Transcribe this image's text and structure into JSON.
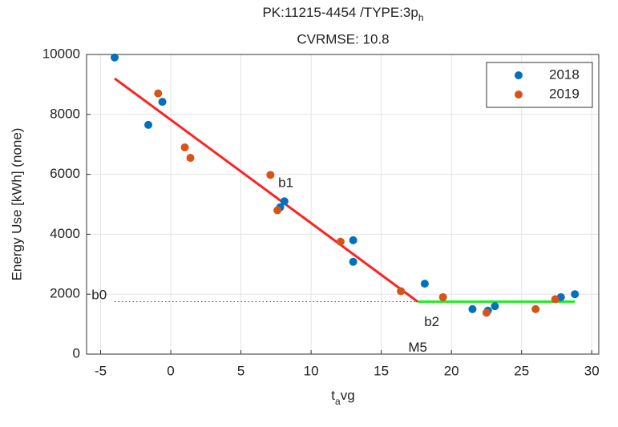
{
  "chart_data": {
    "type": "scatter",
    "title": "PK:11215-4454 /TYPE:3p",
    "title_subscript": "h",
    "subtitle": "CVRMSE: 10.8",
    "ylabel": "Energy Use [kWh] (none)",
    "xlabel": "t",
    "xlabel_subscript": "a",
    "xlabel_suffix": "vg",
    "xlim": [
      -6,
      30.5
    ],
    "ylim": [
      0,
      10000
    ],
    "xticks": [
      -5,
      0,
      5,
      10,
      15,
      20,
      25,
      30
    ],
    "yticks": [
      0,
      2000,
      4000,
      6000,
      8000,
      10000
    ],
    "grid": true,
    "legend": "upper right",
    "series": [
      {
        "name": "2018",
        "color": "#0072bd",
        "x": [
          -4,
          -1.6,
          -0.6,
          7.8,
          8.1,
          13,
          13,
          18.1,
          21.5,
          22.6,
          23.1,
          27.8,
          28.8
        ],
        "values": [
          9900,
          7650,
          8420,
          4900,
          5100,
          3800,
          3080,
          2350,
          1500,
          1450,
          1600,
          1900,
          2000
        ]
      },
      {
        "name": "2019",
        "color": "#d95319",
        "x": [
          -0.9,
          1,
          1.4,
          7.1,
          7.6,
          12.1,
          16.4,
          19.4,
          22.5,
          26,
          27.4
        ],
        "values": [
          8700,
          6900,
          6550,
          5980,
          4800,
          3750,
          2100,
          1900,
          1380,
          1500,
          1830
        ]
      }
    ],
    "lines": [
      {
        "color": "#ff2020",
        "style": "solid",
        "x": [
          -4,
          17.6
        ],
        "values": [
          9200,
          1750
        ]
      },
      {
        "color": "#22ee22",
        "style": "solid",
        "x": [
          17.6,
          28.8
        ],
        "values": [
          1750,
          1750
        ]
      },
      {
        "color": "#555555",
        "style": "dotted",
        "x": [
          -4,
          17.6
        ],
        "values": [
          1750,
          1750
        ]
      }
    ],
    "annotations": [
      {
        "text": "b0",
        "x": -5.1,
        "y": 1950
      },
      {
        "text": "b1",
        "x": 8.2,
        "y": 5700
      },
      {
        "text": "b2",
        "x": 18.6,
        "y": 1050
      },
      {
        "text": "M5",
        "x": 17.6,
        "y": 200
      }
    ]
  }
}
